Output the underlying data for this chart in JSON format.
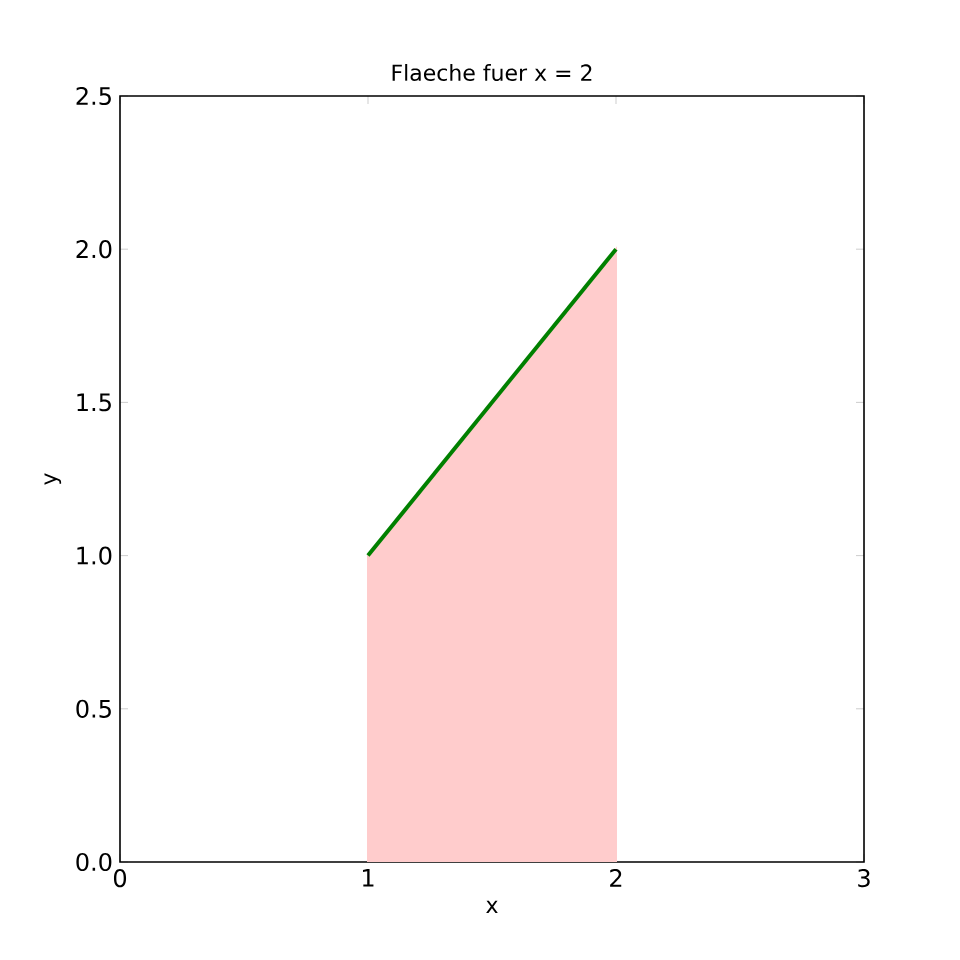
{
  "chart_data": {
    "type": "area",
    "title": "Flaeche fuer x = 2",
    "xlabel": "x",
    "ylabel": "y",
    "xlim": [
      0,
      3
    ],
    "ylim": [
      0,
      2.5
    ],
    "xticks": [
      0,
      1,
      2,
      3
    ],
    "yticks": [
      {
        "value": 0,
        "label": "0.0"
      },
      {
        "value": 0.5,
        "label": "0.5"
      },
      {
        "value": 1,
        "label": "1.0"
      },
      {
        "value": 1.5,
        "label": "1.5"
      },
      {
        "value": 2,
        "label": "2.0"
      },
      {
        "value": 2.5,
        "label": "2.5"
      }
    ],
    "x": [
      1,
      2
    ],
    "series": [
      {
        "color": "#ffcccc",
        "values": [
          1,
          2
        ]
      },
      {
        "type": "line",
        "color": "#008000",
        "values": [
          1,
          2
        ]
      }
    ]
  }
}
